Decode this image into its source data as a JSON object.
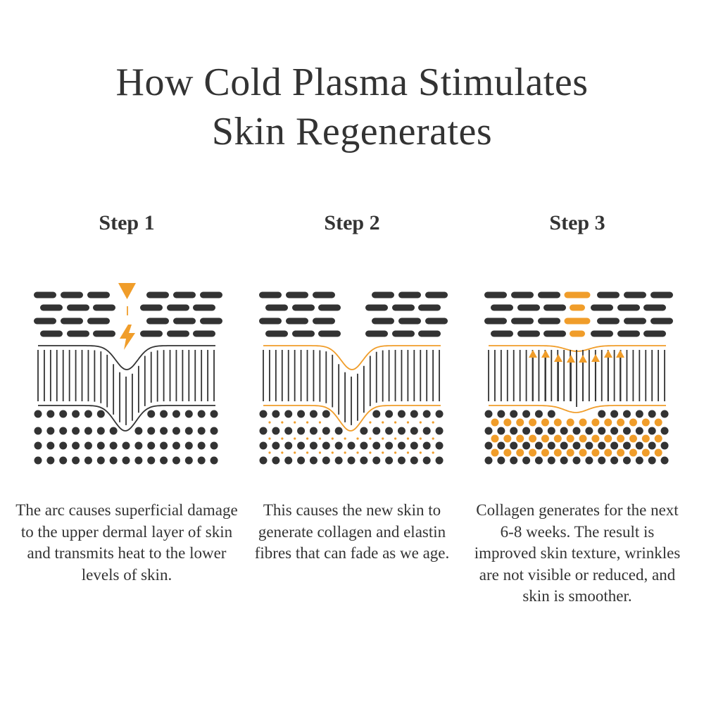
{
  "title": {
    "line1": "How Cold Plasma Stimulates",
    "line2": "Skin Regenerates"
  },
  "colors": {
    "dark": "#333333",
    "accent": "#f09d2a"
  },
  "steps": [
    {
      "label": "Step 1",
      "description": "The arc causes superficial damage to the upper dermal layer of skin and transmits heat to the lower levels of skin.",
      "icons": [
        "down-triangle-icon",
        "lightning-icon"
      ]
    },
    {
      "label": "Step 2",
      "description": "This causes the new skin to generate collagen and elastin fibres that can fade as we age."
    },
    {
      "label": "Step 3",
      "description": "Collagen generates for the next 6-8 weeks. The result is improved skin texture, wrinkles are not visible or reduced, and skin is smoother.",
      "icons": [
        "up-arrow-icon"
      ]
    }
  ]
}
